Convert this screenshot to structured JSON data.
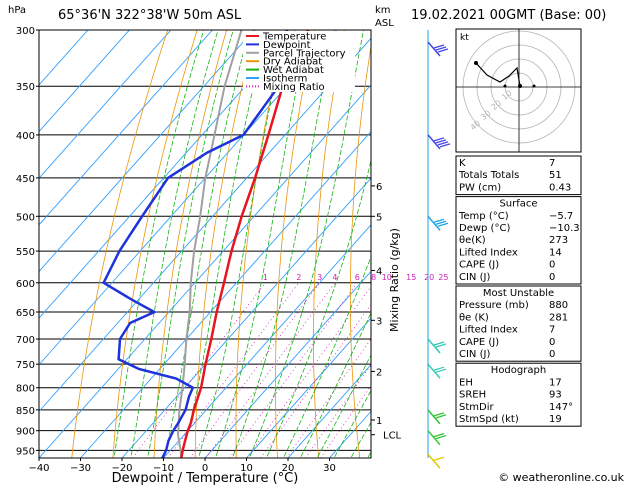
{
  "header": {
    "hpa_unit": "hPa",
    "location": "65°36'N  322°38'W  50m  ASL",
    "km_unit": "km",
    "asl_unit": "ASL",
    "datetime": "19.02.2021  00GMT  (Base: 00)"
  },
  "legend": [
    {
      "label": "Temperature",
      "color": "#e8141e"
    },
    {
      "label": "Dewpoint",
      "color": "#1e32dc"
    },
    {
      "label": "Parcel Trajectory",
      "color": "#a0a0a0"
    },
    {
      "label": "Dry Adiabat",
      "color": "#e8960a"
    },
    {
      "label": "Wet Adiabat",
      "color": "#14b414"
    },
    {
      "label": "Isotherm",
      "color": "#32a0ff"
    },
    {
      "label": "Mixing Ratio",
      "color": "#d21eb4"
    }
  ],
  "chart_data": {
    "type": "skew-t",
    "xlabel": "Dewpoint / Temperature (°C)",
    "ylabel_right": "Mixing Ratio (g/kg)",
    "y_axis_scale": "log-pressure",
    "pressure_ticks": [
      300,
      350,
      400,
      450,
      500,
      550,
      600,
      650,
      700,
      750,
      800,
      850,
      900,
      950
    ],
    "temperature_ticks": [
      -40,
      -30,
      -20,
      -10,
      0,
      10,
      20,
      30
    ],
    "xlim": [
      -40,
      40
    ],
    "ylim_hpa": [
      970,
      300
    ],
    "altitude_km_ticks": [
      {
        "km": "6",
        "p": 460
      },
      {
        "km": "5",
        "p": 500
      },
      {
        "km": "4",
        "p": 580
      },
      {
        "km": "3",
        "p": 665
      },
      {
        "km": "2",
        "p": 765
      },
      {
        "km": "1",
        "p": 874
      }
    ],
    "lcl": {
      "label": "LCL",
      "p": 910
    },
    "mixing_ratio_labels": [
      "1",
      "2",
      "3",
      "4",
      "6",
      "8",
      "10",
      "15",
      "20",
      "25"
    ],
    "series": [
      {
        "name": "Temperature",
        "color": "#e8141e",
        "p": [
          970,
          950,
          925,
          900,
          880,
          850,
          800,
          750,
          700,
          650,
          600,
          550,
          500,
          450,
          400,
          350,
          300
        ],
        "t": [
          -5.7,
          -7,
          -8.5,
          -10,
          -11,
          -13,
          -16,
          -20,
          -24,
          -28.5,
          -33,
          -38,
          -43,
          -48,
          -54,
          -61,
          -67
        ]
      },
      {
        "name": "Dewpoint",
        "color": "#1e32dc",
        "p": [
          970,
          950,
          925,
          900,
          880,
          850,
          820,
          800,
          780,
          760,
          740,
          700,
          670,
          650,
          630,
          600,
          550,
          500,
          450,
          420,
          400,
          350,
          300
        ],
        "t": [
          -10.3,
          -11,
          -12.5,
          -13.5,
          -14,
          -15,
          -17,
          -18,
          -24,
          -35,
          -42,
          -46,
          -47,
          -43.5,
          -51,
          -62,
          -65,
          -67,
          -69,
          -65,
          -60,
          -62,
          -72
        ]
      },
      {
        "name": "Parcel Trajectory",
        "color": "#a0a0a0",
        "p": [
          970,
          950,
          910,
          900,
          850,
          800,
          750,
          700,
          650,
          600,
          550,
          500,
          450,
          400,
          350,
          300
        ],
        "t": [
          -5.7,
          -7.5,
          -11.5,
          -12.3,
          -16.5,
          -20.5,
          -25,
          -30,
          -35,
          -41,
          -47,
          -53,
          -60,
          -67,
          -75,
          -83
        ]
      }
    ]
  },
  "indices": {
    "rows": [
      {
        "label": "K",
        "value": "7"
      },
      {
        "label": "Totals Totals",
        "value": "51"
      },
      {
        "label": "PW (cm)",
        "value": "0.43"
      }
    ]
  },
  "surface": {
    "title": "Surface",
    "rows": [
      {
        "label": "Temp (°C)",
        "value": "-5.7"
      },
      {
        "label": "Dewp (°C)",
        "value": "-10.3"
      },
      {
        "label": "θe(K)",
        "value": "273"
      },
      {
        "label": "Lifted Index",
        "value": "14"
      },
      {
        "label": "CAPE (J)",
        "value": "0"
      },
      {
        "label": "CIN (J)",
        "value": "0"
      }
    ]
  },
  "most_unstable": {
    "title": "Most Unstable",
    "rows": [
      {
        "label": "Pressure (mb)",
        "value": "880"
      },
      {
        "label": "θe (K)",
        "value": "281"
      },
      {
        "label": "Lifted Index",
        "value": "7"
      },
      {
        "label": "CAPE (J)",
        "value": "0"
      },
      {
        "label": "CIN (J)",
        "value": "0"
      }
    ]
  },
  "hodograph": {
    "title": "Hodograph",
    "kt_label": "kt",
    "ring_labels": [
      "10",
      "20",
      "30",
      "40"
    ],
    "rows": [
      {
        "label": "EH",
        "value": "17"
      },
      {
        "label": "SREH",
        "value": "93"
      },
      {
        "label": "StmDir",
        "value": "147°"
      },
      {
        "label": "StmSpd (kt)",
        "value": "19"
      }
    ]
  },
  "footer": {
    "credit": "© weatheronline.co.uk"
  }
}
